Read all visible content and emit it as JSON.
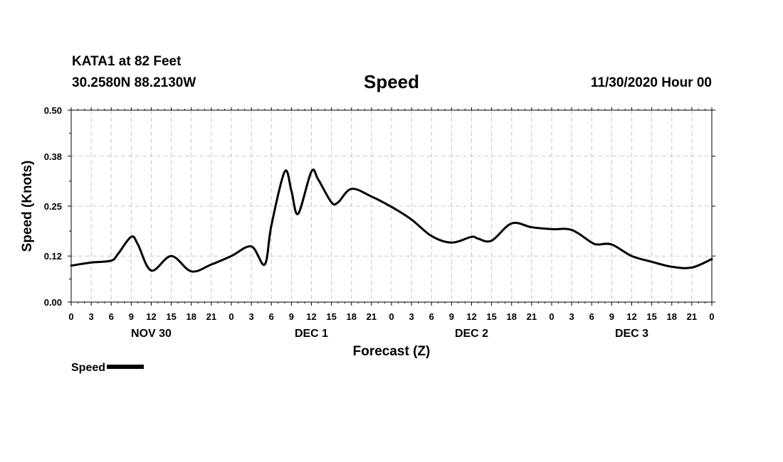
{
  "header": {
    "station": "KATA1 at 82 Feet",
    "coords": "30.2580N 88.2130W",
    "run_time": "11/30/2020 Hour 00"
  },
  "chart_data": {
    "type": "line",
    "title": "Speed",
    "xlabel": "Forecast (Z)",
    "ylabel": "Speed (Knots)",
    "ylim": [
      0,
      0.5
    ],
    "yticks": [
      "0.00",
      "0.12",
      "0.25",
      "0.38",
      "0.50"
    ],
    "xlim": [
      0,
      96
    ],
    "xtick_labels": [
      "0",
      "3",
      "6",
      "9",
      "12",
      "15",
      "18",
      "21",
      "0",
      "3",
      "6",
      "9",
      "12",
      "15",
      "18",
      "21",
      "0",
      "3",
      "6",
      "9",
      "12",
      "15",
      "18",
      "21",
      "0",
      "3",
      "6",
      "9",
      "12",
      "15",
      "18",
      "21",
      "0"
    ],
    "day_labels": [
      {
        "label": "NOV 30",
        "hour": 12
      },
      {
        "label": "DEC 1",
        "hour": 36
      },
      {
        "label": "DEC 2",
        "hour": 60
      },
      {
        "label": "DEC 3",
        "hour": 84
      }
    ],
    "grid": true,
    "legend_position": "bottom-left",
    "series": [
      {
        "name": "Speed",
        "color": "#000000",
        "x": [
          0,
          3,
          6,
          7,
          9,
          10,
          12,
          15,
          18,
          21,
          24,
          27,
          29,
          30,
          32,
          33,
          34,
          36,
          37,
          39,
          40,
          42,
          45,
          48,
          51,
          54,
          57,
          60,
          61,
          63,
          66,
          69,
          72,
          75,
          78,
          79,
          81,
          84,
          87,
          90,
          93,
          96
        ],
        "values": [
          0.095,
          0.103,
          0.108,
          0.125,
          0.17,
          0.15,
          0.082,
          0.12,
          0.08,
          0.098,
          0.12,
          0.145,
          0.098,
          0.2,
          0.34,
          0.29,
          0.23,
          0.34,
          0.32,
          0.26,
          0.26,
          0.295,
          0.275,
          0.248,
          0.215,
          0.172,
          0.155,
          0.17,
          0.165,
          0.16,
          0.205,
          0.195,
          0.19,
          0.188,
          0.155,
          0.15,
          0.15,
          0.12,
          0.105,
          0.092,
          0.09,
          0.112
        ]
      }
    ]
  }
}
